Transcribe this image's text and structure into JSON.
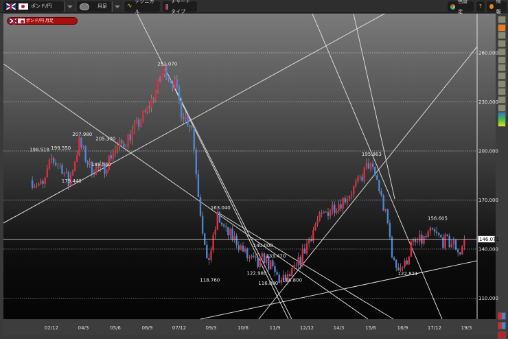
{
  "toolbar": {
    "pair_label": "ポンド/円",
    "period_label": "月足",
    "technical_label": "テクニカル",
    "chart_type_label": "チャートタイプ",
    "color_settings_label": "色設定",
    "help_label": "?",
    "info_label": "情報"
  },
  "badge": {
    "label": "ポンド/円 月足"
  },
  "right_toolbar": {
    "icons": [
      "cursor-icon",
      "trendline-icon",
      "horizontal-line-icon",
      "vertical-line-icon",
      "channel-icon",
      "fibonacci-icon",
      "fib-retracement-icon",
      "fan-icon",
      "period-icon",
      "bar-icon",
      "eraser-icon",
      "trash-icon",
      "indicator-icon"
    ],
    "bottom_icons": [
      "zoom-in-icon",
      "zoom-out-icon",
      "reset-icon"
    ]
  },
  "colors": {
    "up": "#e8283a",
    "down": "#4a86d8",
    "line": "#d8d8d8",
    "accent": "#f07820"
  },
  "chart_data": {
    "type": "candlestick",
    "title": "ポンド/円 月足",
    "yaxis": {
      "ticks": [
        260,
        230,
        200,
        170,
        140,
        110
      ],
      "tick_labels": [
        "260.000",
        "230.000",
        "200.000",
        "170.000",
        "140.000",
        "110.000"
      ],
      "range": [
        96,
        287
      ]
    },
    "xaxis": {
      "tick_labels": [
        "02/12",
        "04/3",
        "05/6",
        "06/9",
        "07/12",
        "09/3",
        "10/6",
        "11/9",
        "12/12",
        "14/3",
        "15/6",
        "16/9",
        "17/12",
        "19/3"
      ]
    },
    "current_price": "146.071",
    "approx_close_path": [
      [
        "2002/3",
        182
      ],
      [
        "2002/8",
        178
      ],
      [
        "2002/12",
        195
      ],
      [
        "2003/5",
        190
      ],
      [
        "2003/8",
        180
      ],
      [
        "2004/1",
        205
      ],
      [
        "2004/6",
        190
      ],
      [
        "2004/12",
        188
      ],
      [
        "2005/5",
        200
      ],
      [
        "2005/10",
        205
      ],
      [
        "2006/4",
        215
      ],
      [
        "2006/9",
        225
      ],
      [
        "2007/2",
        240
      ],
      [
        "2007/5",
        250
      ],
      [
        "2007/10",
        240
      ],
      [
        "2008/1",
        225
      ],
      [
        "2008/6",
        215
      ],
      [
        "2008/9",
        175
      ],
      [
        "2009/1",
        130
      ],
      [
        "2009/4",
        145
      ],
      [
        "2009/6",
        160
      ],
      [
        "2009/10",
        150
      ],
      [
        "2010/3",
        145
      ],
      [
        "2010/8",
        135
      ],
      [
        "2011/1",
        130
      ],
      [
        "2011/4",
        135
      ],
      [
        "2011/9",
        125
      ],
      [
        "2011/12",
        120
      ],
      [
        "2012/3",
        122
      ],
      [
        "2012/7",
        128
      ],
      [
        "2012/11",
        140
      ],
      [
        "2013/4",
        155
      ],
      [
        "2013/11",
        165
      ],
      [
        "2014/5",
        170
      ],
      [
        "2014/12",
        180
      ],
      [
        "2015/5",
        192
      ],
      [
        "2015/9",
        182
      ],
      [
        "2016/2",
        155
      ],
      [
        "2016/5",
        130
      ],
      [
        "2016/10",
        130
      ],
      [
        "2017/1",
        142
      ],
      [
        "2017/6",
        145
      ],
      [
        "2017/11",
        150
      ],
      [
        "2018/4",
        145
      ],
      [
        "2018/9",
        143
      ],
      [
        "2018/12",
        138
      ],
      [
        "2019/2",
        146.07
      ]
    ],
    "annotations": [
      {
        "date": "2002/12",
        "price": 198.518,
        "text": "198.518"
      },
      {
        "date": "2003/3",
        "price": 199.55,
        "text": "199.550"
      },
      {
        "date": "2004/1",
        "price": 207.98,
        "text": "207.980"
      },
      {
        "date": "2003/8",
        "price": 179.44,
        "text": "179.440"
      },
      {
        "date": "2004/12",
        "price": 205.3,
        "text": "205.300"
      },
      {
        "date": "2004/10",
        "price": 189.56,
        "text": "189.560"
      },
      {
        "date": "2007/5",
        "price": 251.07,
        "text": "251.070"
      },
      {
        "date": "2009/1",
        "price": 118.76,
        "text": "118.760"
      },
      {
        "date": "2009/6",
        "price": 163.04,
        "text": "163.040"
      },
      {
        "date": "2011/2",
        "price": 140.0,
        "text": "140.000"
      },
      {
        "date": "2010/11",
        "price": 122.98,
        "text": "122.980"
      },
      {
        "date": "2011/8",
        "price": 133.47,
        "text": "133.470"
      },
      {
        "date": "2011/7",
        "price": 116.8,
        "text": "116.800"
      },
      {
        "date": "2012/3",
        "price": 118.8,
        "text": "118.800"
      },
      {
        "date": "2015/5",
        "price": 195.863,
        "text": "195.863"
      },
      {
        "date": "2016/10",
        "price": 122.821,
        "text": "122.821"
      },
      {
        "date": "2017/12",
        "price": 156.605,
        "text": "156.605"
      }
    ]
  }
}
